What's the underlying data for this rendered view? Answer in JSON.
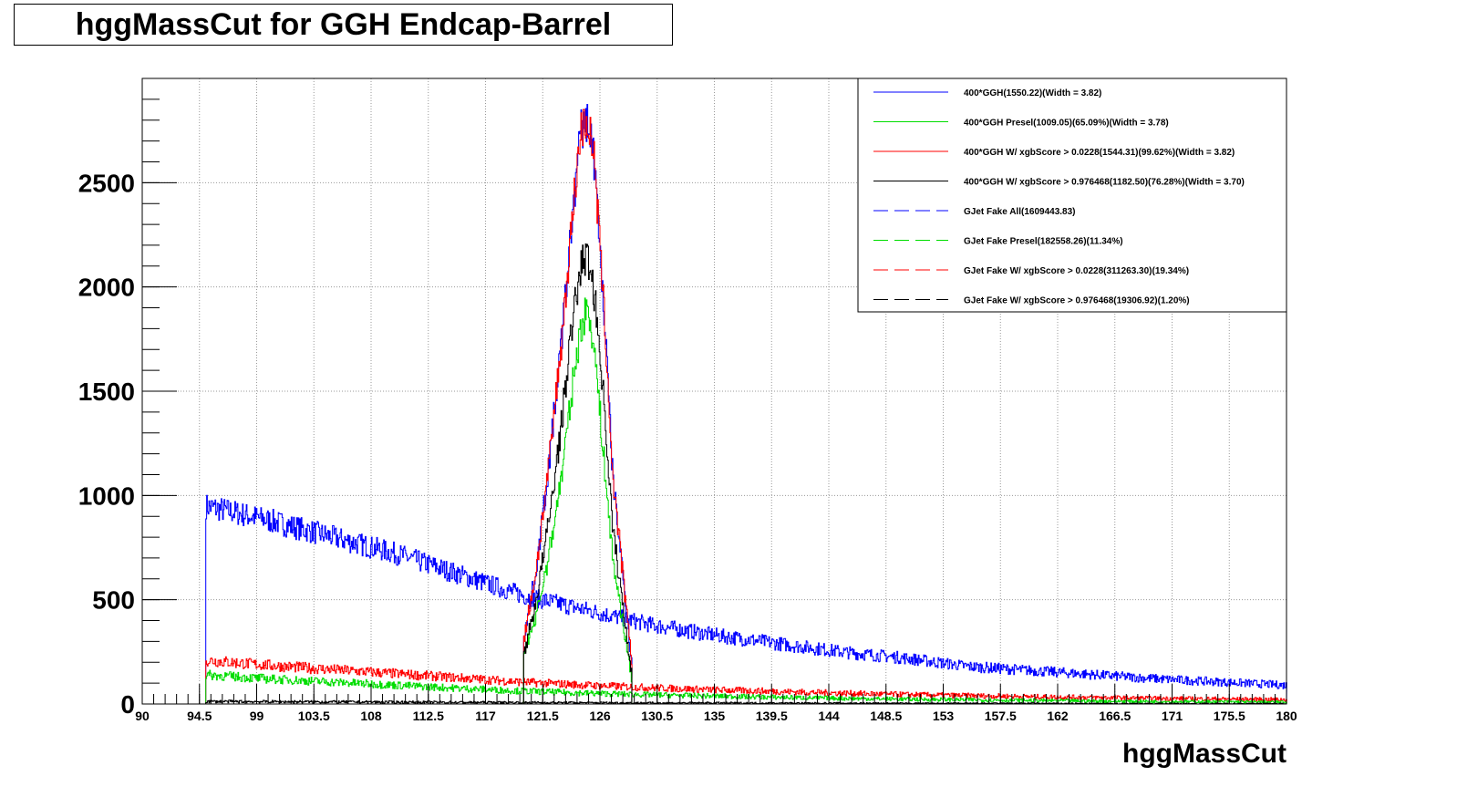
{
  "chart_data": {
    "type": "line",
    "title": "hggMassCut for GGH Endcap-Barrel",
    "xlabel": "hggMassCut",
    "ylabel": "",
    "xlim": [
      90,
      180
    ],
    "ylim": [
      0,
      3000
    ],
    "grid": true,
    "legend_position": "top-right",
    "x_ticks": [
      "90",
      "94.5",
      "99",
      "103.5",
      "108",
      "112.5",
      "117",
      "121.5",
      "126",
      "130.5",
      "135",
      "139.5",
      "144",
      "148.5",
      "153",
      "157.5",
      "162",
      "166.5",
      "171",
      "175.5",
      "180"
    ],
    "y_ticks": [
      "0",
      "500",
      "1000",
      "1500",
      "2000",
      "2500"
    ],
    "series": [
      {
        "name": "400*GGH(1550.22)(Width = 3.82)",
        "color": "#0000ff",
        "style": "solid",
        "x": [
          120.0,
          121.0,
          122.0,
          123.0,
          123.5,
          124.0,
          124.5,
          125.0,
          125.5,
          126.0,
          126.5,
          127.0,
          128.0,
          128.5
        ],
        "y": [
          300,
          650,
          1150,
          1750,
          2100,
          2450,
          2750,
          2800,
          2650,
          2200,
          1700,
          1100,
          500,
          200
        ]
      },
      {
        "name": "400*GGH Presel(1009.05)(65.09%)(Width = 3.78)",
        "color": "#00dd00",
        "style": "solid",
        "x": [
          120.0,
          121.0,
          122.0,
          123.0,
          123.5,
          124.0,
          124.5,
          125.0,
          125.5,
          126.0,
          126.5,
          127.0,
          128.0,
          128.5
        ],
        "y": [
          250,
          420,
          720,
          1100,
          1350,
          1600,
          1800,
          1900,
          1750,
          1400,
          1050,
          700,
          320,
          120
        ]
      },
      {
        "name": "400*GGH W/ xgbScore > 0.0228(1544.31)(99.62%)(Width = 3.82)",
        "color": "#ff0000",
        "style": "solid",
        "x": [
          120.0,
          121.0,
          122.0,
          123.0,
          123.5,
          124.0,
          124.5,
          125.0,
          125.5,
          126.0,
          126.5,
          127.0,
          128.0,
          128.5
        ],
        "y": [
          300,
          650,
          1150,
          1750,
          2100,
          2450,
          2750,
          2800,
          2650,
          2200,
          1700,
          1100,
          500,
          200
        ]
      },
      {
        "name": "400*GGH W/ xgbScore > 0.976468(1182.50)(76.28%)(Width = 3.70)",
        "color": "#000000",
        "style": "solid",
        "x": [
          120.0,
          121.0,
          122.0,
          123.0,
          123.5,
          124.0,
          124.5,
          125.0,
          125.5,
          126.0,
          126.5,
          127.0,
          128.0,
          128.5
        ],
        "y": [
          230,
          500,
          880,
          1350,
          1650,
          1900,
          2100,
          2150,
          2000,
          1700,
          1300,
          850,
          380,
          150
        ]
      },
      {
        "name": "GJet Fake All(1609443.83)",
        "color": "#0000ff",
        "style": "dashed",
        "x": [
          95,
          100,
          105,
          110,
          115,
          120,
          125,
          130,
          135,
          140,
          145,
          150,
          155,
          160,
          165,
          170,
          175,
          180
        ],
        "y": [
          950,
          880,
          800,
          720,
          620,
          520,
          450,
          380,
          330,
          290,
          250,
          220,
          180,
          160,
          140,
          120,
          105,
          90
        ]
      },
      {
        "name": "GJet Fake Presel(182558.26)(11.34%)",
        "color": "#00dd00",
        "style": "dashed",
        "x": [
          95,
          100,
          105,
          110,
          115,
          120,
          125,
          130,
          135,
          140,
          145,
          150,
          155,
          160,
          165,
          170,
          175,
          180
        ],
        "y": [
          140,
          120,
          105,
          90,
          75,
          62,
          52,
          44,
          38,
          32,
          27,
          23,
          20,
          17,
          14,
          12,
          11,
          9
        ]
      },
      {
        "name": "GJet Fake W/ xgbScore > 0.0228(311263.30)(19.34%)",
        "color": "#ff0000",
        "style": "dashed",
        "x": [
          95,
          100,
          105,
          110,
          115,
          120,
          125,
          130,
          135,
          140,
          145,
          150,
          155,
          160,
          165,
          170,
          175,
          180
        ],
        "y": [
          210,
          185,
          165,
          145,
          125,
          105,
          90,
          78,
          68,
          60,
          52,
          45,
          40,
          35,
          31,
          27,
          24,
          21
        ]
      },
      {
        "name": "GJet Fake W/ xgbScore > 0.976468(19306.92)(1.20%)",
        "color": "#000000",
        "style": "dashed",
        "x": [
          95,
          100,
          105,
          110,
          115,
          120,
          125,
          130,
          135,
          140,
          145,
          150,
          155,
          160,
          165,
          170,
          175,
          180
        ],
        "y": [
          12,
          11,
          10,
          9,
          8,
          7,
          6,
          5,
          5,
          4,
          4,
          3,
          3,
          3,
          2,
          2,
          2,
          2
        ]
      }
    ]
  }
}
